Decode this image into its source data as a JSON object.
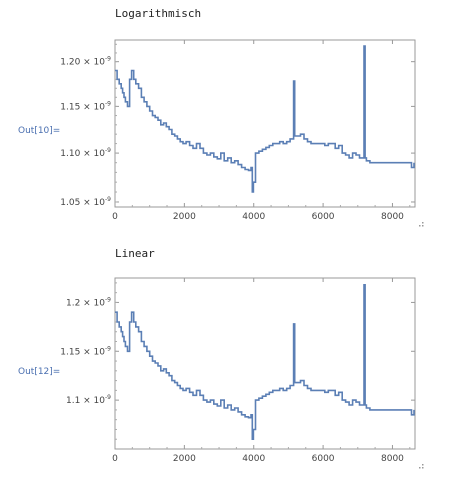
{
  "cells": [
    {
      "title": "Logarithmisch",
      "out_label": "Out[10]=",
      "chart_data": {
        "type": "line",
        "scale": "log",
        "xlim": [
          0,
          8650
        ],
        "ylim": [
          1.045e-09,
          1.225e-09
        ],
        "xticks": [
          0,
          2000,
          4000,
          6000,
          8000
        ],
        "xtick_labels": [
          "0",
          "2000",
          "4000",
          "6000",
          "8000"
        ],
        "yticks": [
          1.05e-09,
          1.1e-09,
          1.15e-09,
          1.2e-09
        ],
        "ytick_mantissas": [
          "1.05",
          "1.10",
          "1.15",
          "1.20"
        ],
        "ytick_exponent": "-9",
        "line_color": "#5b7fb5"
      }
    },
    {
      "title": "Linear",
      "out_label": "Out[12]=",
      "chart_data": {
        "type": "line",
        "scale": "linear",
        "xlim": [
          0,
          8650
        ],
        "ylim": [
          1.05e-09,
          1.225e-09
        ],
        "xticks": [
          0,
          2000,
          4000,
          6000,
          8000
        ],
        "xtick_labels": [
          "0",
          "2000",
          "4000",
          "6000",
          "8000"
        ],
        "yticks": [
          1.1e-09,
          1.15e-09,
          1.2e-09
        ],
        "ytick_mantissas": [
          "1.1",
          "1.15",
          "1.2"
        ],
        "ytick_exponent": "-9",
        "line_color": "#5b7fb5"
      }
    }
  ],
  "series": {
    "x": [
      0,
      60,
      120,
      180,
      220,
      260,
      300,
      360,
      420,
      480,
      540,
      600,
      680,
      760,
      840,
      920,
      1000,
      1080,
      1160,
      1240,
      1320,
      1400,
      1480,
      1560,
      1640,
      1720,
      1800,
      1880,
      1960,
      2050,
      2150,
      2250,
      2350,
      2450,
      2550,
      2650,
      2750,
      2850,
      2950,
      3050,
      3150,
      3250,
      3350,
      3450,
      3550,
      3650,
      3750,
      3850,
      3920,
      3960,
      3990,
      4050,
      4150,
      4250,
      4350,
      4450,
      4550,
      4650,
      4750,
      4850,
      4950,
      5050,
      5120,
      5150,
      5180,
      5250,
      5350,
      5450,
      5550,
      5650,
      5750,
      5850,
      5950,
      6050,
      6150,
      6250,
      6350,
      6450,
      6550,
      6650,
      6750,
      6850,
      6950,
      7050,
      7150,
      7180,
      7210,
      7250,
      7350,
      7450,
      7550,
      7650,
      7750,
      7850,
      7950,
      8050,
      8150,
      8250,
      8350,
      8450,
      8550,
      8620
    ],
    "y": [
      1.19e-09,
      1.18e-09,
      1.175e-09,
      1.17e-09,
      1.165e-09,
      1.16e-09,
      1.155e-09,
      1.15e-09,
      1.18e-09,
      1.19e-09,
      1.18e-09,
      1.175e-09,
      1.17e-09,
      1.16e-09,
      1.155e-09,
      1.15e-09,
      1.145e-09,
      1.14e-09,
      1.138e-09,
      1.135e-09,
      1.13e-09,
      1.132e-09,
      1.128e-09,
      1.125e-09,
      1.12e-09,
      1.118e-09,
      1.115e-09,
      1.112e-09,
      1.11e-09,
      1.112e-09,
      1.108e-09,
      1.105e-09,
      1.11e-09,
      1.105e-09,
      1.1e-09,
      1.098e-09,
      1.1e-09,
      1.096e-09,
      1.094e-09,
      1.1e-09,
      1.092e-09,
      1.095e-09,
      1.09e-09,
      1.092e-09,
      1.088e-09,
      1.085e-09,
      1.083e-09,
      1.082e-09,
      1.085e-09,
      1.06e-09,
      1.07e-09,
      1.1e-09,
      1.102e-09,
      1.104e-09,
      1.106e-09,
      1.108e-09,
      1.11e-09,
      1.11e-09,
      1.112e-09,
      1.11e-09,
      1.112e-09,
      1.115e-09,
      1.115e-09,
      1.178e-09,
      1.118e-09,
      1.118e-09,
      1.12e-09,
      1.115e-09,
      1.112e-09,
      1.11e-09,
      1.11e-09,
      1.11e-09,
      1.11e-09,
      1.108e-09,
      1.11e-09,
      1.11e-09,
      1.105e-09,
      1.108e-09,
      1.1e-09,
      1.098e-09,
      1.095e-09,
      1.1e-09,
      1.098e-09,
      1.095e-09,
      1.095e-09,
      1.218e-09,
      1.095e-09,
      1.092e-09,
      1.09e-09,
      1.09e-09,
      1.09e-09,
      1.09e-09,
      1.09e-09,
      1.09e-09,
      1.09e-09,
      1.09e-09,
      1.09e-09,
      1.09e-09,
      1.09e-09,
      1.09e-09,
      1.085e-09,
      1.09e-09
    ]
  }
}
